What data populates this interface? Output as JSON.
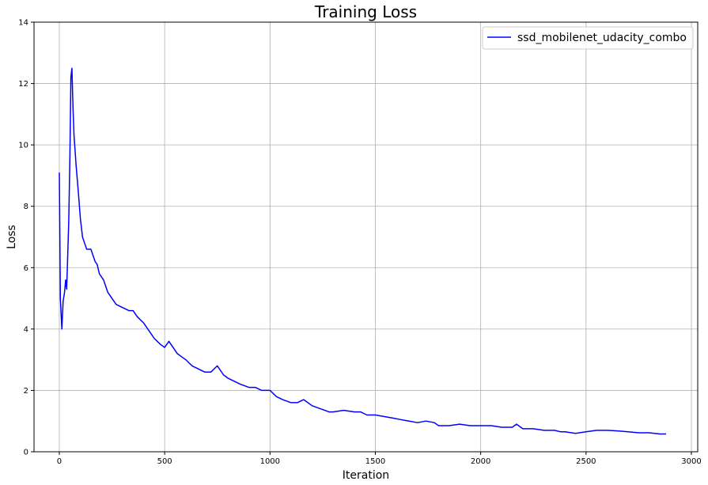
{
  "chart_data": {
    "type": "line",
    "title": "Training Loss",
    "xlabel": "Iteration",
    "ylabel": "Loss",
    "xlim": [
      -120,
      3030
    ],
    "ylim": [
      0,
      14
    ],
    "x_ticks": [
      0,
      500,
      1000,
      1500,
      2000,
      2500,
      3000
    ],
    "y_ticks": [
      0,
      2,
      4,
      6,
      8,
      10,
      12,
      14
    ],
    "grid": true,
    "legend_position": "top-right",
    "series": [
      {
        "name": "ssd_mobilenet_udacity_combo",
        "color": "#0000ff",
        "x": [
          0,
          5,
          12,
          18,
          25,
          30,
          35,
          45,
          50,
          55,
          60,
          65,
          70,
          80,
          90,
          100,
          110,
          120,
          130,
          150,
          170,
          180,
          190,
          210,
          230,
          250,
          270,
          300,
          330,
          350,
          370,
          400,
          430,
          450,
          480,
          500,
          520,
          540,
          560,
          580,
          600,
          630,
          660,
          690,
          720,
          750,
          780,
          800,
          830,
          860,
          900,
          930,
          960,
          1000,
          1030,
          1060,
          1100,
          1130,
          1160,
          1200,
          1240,
          1280,
          1300,
          1350,
          1400,
          1430,
          1460,
          1500,
          1540,
          1580,
          1620,
          1660,
          1700,
          1740,
          1780,
          1800,
          1850,
          1900,
          1950,
          2000,
          2050,
          2100,
          2150,
          2170,
          2200,
          2250,
          2300,
          2350,
          2380,
          2400,
          2450,
          2500,
          2550,
          2600,
          2650,
          2700,
          2750,
          2800,
          2850,
          2880
        ],
        "values": [
          9.1,
          5.0,
          4.0,
          4.9,
          5.2,
          5.6,
          5.3,
          7.5,
          9.5,
          12.2,
          12.5,
          11.2,
          10.3,
          9.3,
          8.5,
          7.6,
          7.0,
          6.8,
          6.6,
          6.6,
          6.2,
          6.1,
          5.8,
          5.6,
          5.2,
          5.0,
          4.8,
          4.7,
          4.6,
          4.6,
          4.4,
          4.2,
          3.9,
          3.7,
          3.5,
          3.4,
          3.6,
          3.4,
          3.2,
          3.1,
          3.0,
          2.8,
          2.7,
          2.6,
          2.6,
          2.8,
          2.5,
          2.4,
          2.3,
          2.2,
          2.1,
          2.1,
          2.0,
          2.0,
          1.8,
          1.7,
          1.6,
          1.6,
          1.7,
          1.5,
          1.4,
          1.3,
          1.3,
          1.35,
          1.3,
          1.3,
          1.2,
          1.2,
          1.15,
          1.1,
          1.05,
          1.0,
          0.95,
          1.0,
          0.95,
          0.85,
          0.85,
          0.9,
          0.85,
          0.85,
          0.85,
          0.8,
          0.8,
          0.9,
          0.75,
          0.75,
          0.7,
          0.7,
          0.65,
          0.65,
          0.6,
          0.65,
          0.7,
          0.7,
          0.68,
          0.65,
          0.62,
          0.62,
          0.58,
          0.58
        ]
      }
    ]
  }
}
